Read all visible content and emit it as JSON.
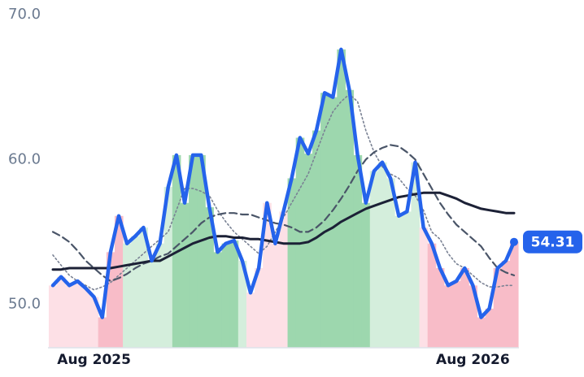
{
  "chart_data": {
    "type": "line",
    "categories": [
      null,
      null,
      null,
      null,
      null,
      "Aug 2025",
      null,
      null,
      null,
      null,
      null,
      null,
      null,
      null,
      null,
      null,
      null,
      null,
      null,
      null,
      null,
      null,
      null,
      null,
      null,
      null,
      null,
      null,
      null,
      null,
      null,
      null,
      null,
      null,
      null,
      null,
      null,
      null,
      null,
      null,
      null,
      null,
      null,
      null,
      null,
      null,
      null,
      null,
      null,
      null,
      null,
      "Aug 2026",
      null,
      null,
      null,
      null,
      null
    ],
    "series": [
      {
        "color": "#2563eb",
        "style": "solid",
        "width": 4.5,
        "values": [
          51.3,
          51.9,
          51.3,
          51.6,
          51.1,
          50.5,
          49.1,
          53.6,
          56.1,
          54.2,
          54.7,
          55.3,
          53.0,
          54.2,
          58.1,
          60.3,
          57.0,
          60.3,
          60.3,
          56.7,
          53.6,
          54.2,
          54.4,
          53.0,
          50.8,
          52.5,
          57.0,
          54.2,
          56.4,
          58.7,
          61.5,
          60.4,
          62.0,
          64.6,
          64.3,
          67.6,
          64.8,
          60.3,
          57.0,
          59.2,
          59.8,
          58.7,
          56.1,
          56.4,
          59.8,
          55.3,
          54.2,
          52.5,
          51.3,
          51.6,
          52.5,
          51.3,
          49.1,
          49.7,
          52.5,
          53.0,
          54.31
        ]
      },
      {
        "color": "#1c2136",
        "style": "solid",
        "width": 3,
        "values": [
          52.4,
          52.4,
          52.5,
          52.5,
          52.5,
          52.5,
          52.5,
          52.5,
          52.6,
          52.7,
          52.8,
          52.9,
          53.0,
          53.0,
          53.3,
          53.6,
          53.9,
          54.2,
          54.4,
          54.6,
          54.7,
          54.7,
          54.6,
          54.6,
          54.5,
          54.5,
          54.4,
          54.3,
          54.2,
          54.2,
          54.2,
          54.3,
          54.6,
          55.0,
          55.3,
          55.7,
          56.0,
          56.3,
          56.6,
          56.8,
          57.0,
          57.2,
          57.4,
          57.5,
          57.6,
          57.7,
          57.7,
          57.7,
          57.5,
          57.3,
          57.0,
          56.8,
          56.6,
          56.5,
          56.4,
          56.3,
          56.3
        ]
      },
      {
        "color": "#4a5568",
        "style": "dashed",
        "width": 2.2,
        "values": [
          55.0,
          54.7,
          54.3,
          53.7,
          53.0,
          52.5,
          52.0,
          51.6,
          51.8,
          52.1,
          52.5,
          52.8,
          53.0,
          53.3,
          53.5,
          54.0,
          54.5,
          55.0,
          55.6,
          56.0,
          56.2,
          56.3,
          56.3,
          56.2,
          56.2,
          56.0,
          55.8,
          55.6,
          55.5,
          55.3,
          55.0,
          55.0,
          55.3,
          55.8,
          56.5,
          57.3,
          58.2,
          59.2,
          60.0,
          60.5,
          60.8,
          61.0,
          60.9,
          60.5,
          60.0,
          59.0,
          58.0,
          57.0,
          56.2,
          55.5,
          55.0,
          54.5,
          54.0,
          53.2,
          52.5,
          52.2,
          52.0
        ]
      },
      {
        "color": "#7a8294",
        "style": "dotted",
        "width": 1.6,
        "values": [
          53.4,
          52.7,
          52.0,
          51.6,
          51.3,
          51.0,
          51.2,
          51.5,
          52.0,
          52.5,
          53.0,
          53.5,
          54.0,
          54.5,
          55.0,
          56.5,
          58.0,
          58.0,
          57.8,
          57.5,
          56.5,
          55.7,
          55.0,
          54.5,
          54.0,
          53.5,
          54.0,
          55.0,
          56.0,
          57.0,
          58.0,
          59.0,
          60.5,
          62.0,
          63.3,
          64.0,
          64.5,
          64.0,
          62.0,
          60.5,
          59.5,
          59.0,
          58.7,
          58.0,
          57.5,
          56.5,
          55.0,
          54.5,
          53.5,
          52.8,
          52.5,
          52.0,
          51.5,
          51.2,
          51.2,
          51.3,
          51.3
        ]
      }
    ],
    "bar_colors": [
      "#fde0e6",
      "#fde0e6",
      "#fde0e6",
      "#fde0e6",
      "#fde0e6",
      "#fde0e6",
      "#f8bcc8",
      "#f8bcc8",
      "#f8bcc8",
      "#d4eedc",
      "#d4eedc",
      "#d4eedc",
      "#d4eedc",
      "#d4eedc",
      "#d4eedc",
      "#9dd7ae",
      "#9dd7ae",
      "#9dd7ae",
      "#9dd7ae",
      "#9dd7ae",
      "#9dd7ae",
      "#9dd7ae",
      "#9dd7ae",
      "#d4eedc",
      "#fde0e6",
      "#fde0e6",
      "#fde0e6",
      "#fde0e6",
      "#fde0e6",
      "#9dd7ae",
      "#9dd7ae",
      "#9dd7ae",
      "#9dd7ae",
      "#9dd7ae",
      "#9dd7ae",
      "#9dd7ae",
      "#9dd7ae",
      "#9dd7ae",
      "#9dd7ae",
      "#d4eedc",
      "#d4eedc",
      "#d4eedc",
      "#d4eedc",
      "#d4eedc",
      "#d4eedc",
      "#fde0e6",
      "#f8bcc8",
      "#f8bcc8",
      "#f8bcc8",
      "#f8bcc8",
      "#f8bcc8",
      "#f8bcc8",
      "#f8bcc8",
      "#f8bcc8",
      "#f8bcc8",
      "#f8bcc8",
      "#f8bcc8"
    ],
    "ylim": [
      47,
      70
    ],
    "yticks": [
      {
        "value": 50,
        "label": "50.0"
      },
      {
        "value": 60,
        "label": "60.0"
      },
      {
        "value": 70,
        "label": "70.0"
      }
    ]
  }
}
